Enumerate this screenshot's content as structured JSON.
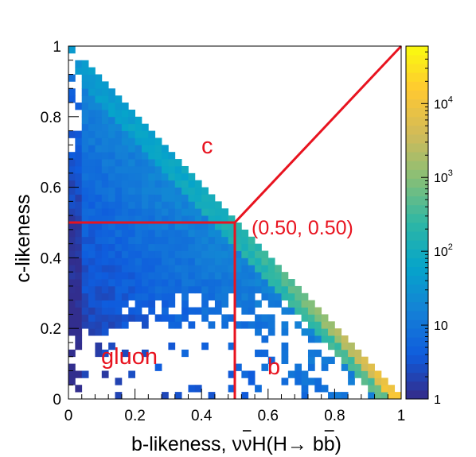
{
  "chart_data": {
    "type": "heatmap",
    "xlabel_main": "b-likeness, ",
    "xlabel_process": "ν",
    "xlabel_nubar": "ν",
    "xlabel_rest": "H(H",
    "xlabel_arrow": "→",
    "xlabel_bb": " b",
    "xlabel_bbar": "b",
    "xlabel_close": ")",
    "ylabel": "c-likeness",
    "xlim": [
      0,
      1
    ],
    "ylim": [
      0,
      1
    ],
    "x_ticks": [
      "0",
      "0.2",
      "0.4",
      "0.6",
      "0.8",
      "1"
    ],
    "y_ticks": [
      "0",
      "0.2",
      "0.4",
      "0.6",
      "0.8",
      "1"
    ],
    "x_tick_values": [
      0,
      0.2,
      0.4,
      0.6,
      0.8,
      1
    ],
    "y_tick_values": [
      0,
      0.2,
      0.4,
      0.6,
      0.8,
      1
    ],
    "bins": 50,
    "z_scale": "log",
    "z_range": [
      1,
      60000
    ],
    "colorbar_labels": [
      {
        "base": "1",
        "exp": "",
        "value": 1
      },
      {
        "base": "10",
        "exp": "",
        "value": 10
      },
      {
        "base": "10",
        "exp": "2",
        "value": 100
      },
      {
        "base": "10",
        "exp": "3",
        "value": 1000
      },
      {
        "base": "10",
        "exp": "4",
        "value": 10000
      }
    ],
    "cut_point": [
      0.5,
      0.5
    ],
    "annotations": {
      "point": "(0.50, 0.50)",
      "c_region": "c",
      "b_region": "b",
      "gluon_region": "gluon"
    },
    "colors": {
      "cut_lines": "#e8131f",
      "colormap": [
        "#352a87",
        "#0f5cdd",
        "#1481d6",
        "#06a4ca",
        "#2eb7a4",
        "#87bf77",
        "#d1bb59",
        "#fec832",
        "#f9fb0e"
      ]
    }
  }
}
